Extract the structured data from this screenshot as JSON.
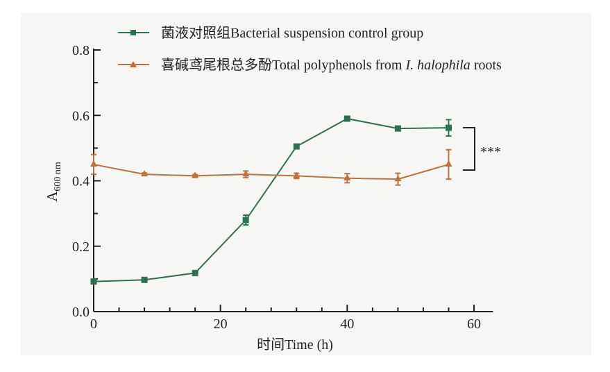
{
  "chart_data": {
    "type": "line",
    "xlabel": "时间Time (h)",
    "ylabel_main": "A",
    "ylabel_sub": "600 nm",
    "xlim": [
      0,
      63
    ],
    "ylim": [
      0,
      0.8
    ],
    "xticks": [
      0,
      20,
      40,
      60
    ],
    "xtick_labels": [
      "0",
      "20",
      "40",
      "60"
    ],
    "yticks": [
      0,
      0.2,
      0.4,
      0.6,
      0.8
    ],
    "ytick_labels": [
      "0.0",
      "0.2",
      "0.4",
      "0.6",
      "0.8"
    ],
    "legend_position": "top",
    "x": [
      0,
      8,
      16,
      24,
      32,
      40,
      48,
      56
    ],
    "series": [
      {
        "name": "菌液对照组Bacterial suspension control group",
        "marker": "square",
        "color": "#2e7150",
        "values": [
          0.092,
          0.097,
          0.118,
          0.28,
          0.505,
          0.59,
          0.56,
          0.562
        ],
        "errors": [
          0.004,
          0.004,
          0.004,
          0.015,
          0.004,
          0.004,
          0.004,
          0.025
        ]
      },
      {
        "name_prefix": "喜碱鸢尾根总多酚Total polyphenols from ",
        "name_italic": "I. halophila",
        "name_suffix": " roots",
        "marker": "triangle",
        "color": "#c0703a",
        "values": [
          0.45,
          0.42,
          0.415,
          0.42,
          0.415,
          0.408,
          0.405,
          0.45
        ],
        "errors": [
          0.03,
          0.004,
          0.004,
          0.01,
          0.008,
          0.014,
          0.018,
          0.045
        ]
      }
    ],
    "annotation": "***"
  }
}
